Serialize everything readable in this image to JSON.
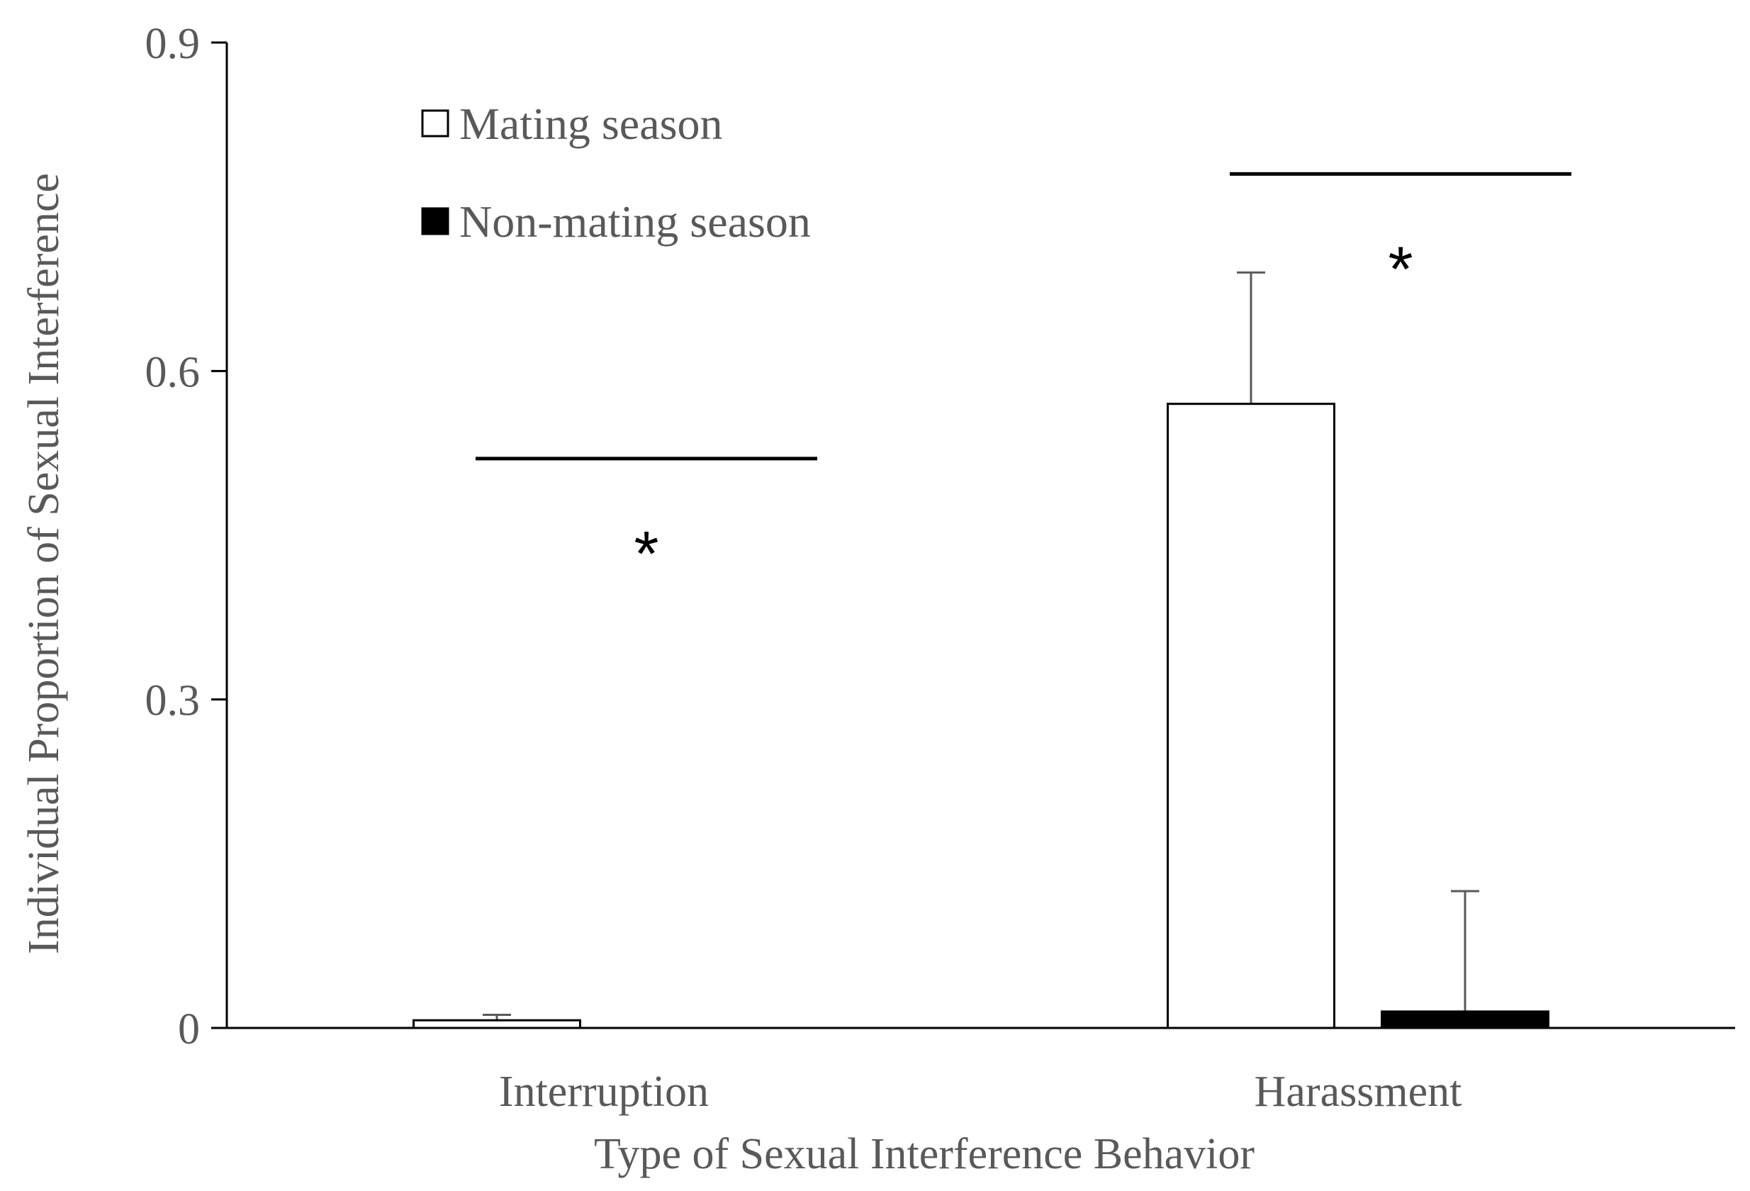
{
  "chart_data": {
    "type": "bar",
    "xlabel": "Type of Sexual Interference Behavior",
    "ylabel": "Individual Proportion of Sexual Interference",
    "ylim": [
      0,
      0.9
    ],
    "yticks": [
      "0",
      "0.3",
      "0.6",
      "0.9"
    ],
    "categories": [
      "Interruption",
      "Harassment"
    ],
    "series": [
      {
        "name": "Mating season",
        "fill": "#ffffff",
        "stroke": "#000000",
        "values": [
          0.007,
          0.57
        ],
        "errors": [
          0.005,
          0.12
        ]
      },
      {
        "name": "Non-mating season",
        "fill": "#000000",
        "stroke": "#000000",
        "values": [
          0.0,
          0.015
        ],
        "errors": [
          0.0,
          0.11
        ]
      }
    ],
    "significance": [
      {
        "category": 0,
        "y": 0.52,
        "label": "*"
      },
      {
        "category": 1,
        "y": 0.78,
        "label": "*"
      }
    ],
    "legend": "top-left",
    "grid": false
  },
  "colors": {
    "axis": "#000000",
    "text": "#595959"
  }
}
